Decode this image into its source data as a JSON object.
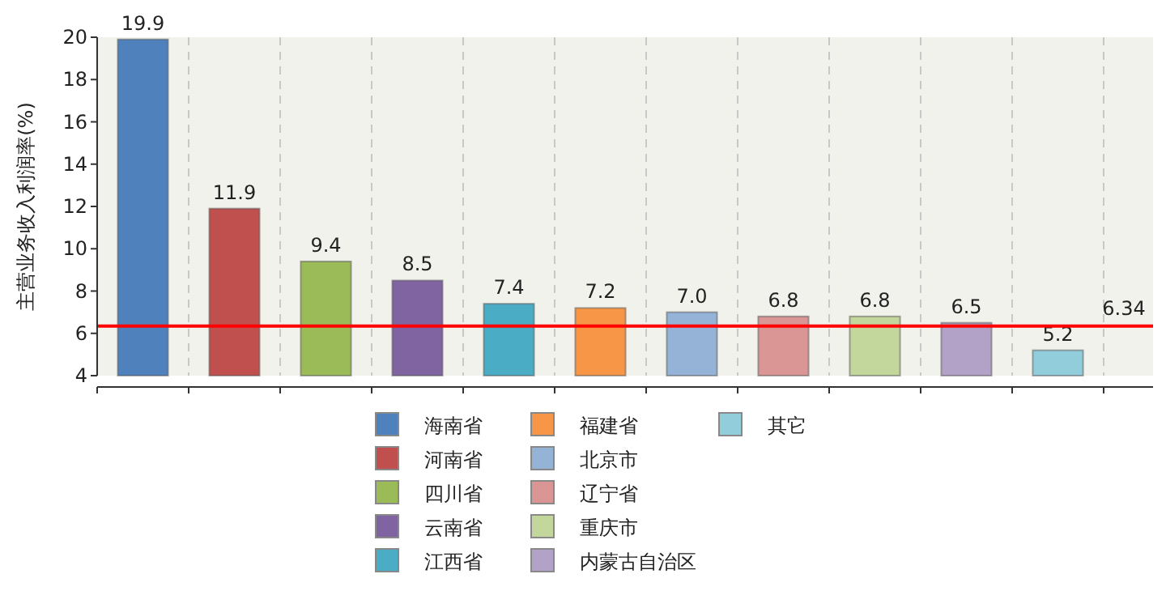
{
  "chart_data": {
    "type": "bar",
    "ylabel": "主营业务收入利润率(%)",
    "categories": [
      null,
      null,
      null,
      null,
      null,
      null,
      null,
      null,
      null,
      null,
      null
    ],
    "series": [
      {
        "name": "海南省",
        "color": "#4f81bd",
        "values": [
          19.9,
          null,
          null,
          null,
          null,
          null,
          null,
          null,
          null,
          null,
          null
        ],
        "value_labels": [
          "19.9",
          null,
          null,
          null,
          null,
          null,
          null,
          null,
          null,
          null,
          null
        ]
      },
      {
        "name": "河南省",
        "color": "#c0504d",
        "values": [
          null,
          11.9,
          null,
          null,
          null,
          null,
          null,
          null,
          null,
          null,
          null
        ],
        "value_labels": [
          null,
          "11.9",
          null,
          null,
          null,
          null,
          null,
          null,
          null,
          null,
          null
        ]
      },
      {
        "name": "四川省",
        "color": "#9bbb59",
        "values": [
          null,
          null,
          9.4,
          null,
          null,
          null,
          null,
          null,
          null,
          null,
          null
        ],
        "value_labels": [
          null,
          null,
          "9.4",
          null,
          null,
          null,
          null,
          null,
          null,
          null,
          null
        ]
      },
      {
        "name": "云南省",
        "color": "#8064a2",
        "values": [
          null,
          null,
          null,
          8.5,
          null,
          null,
          null,
          null,
          null,
          null,
          null
        ],
        "value_labels": [
          null,
          null,
          null,
          "8.5",
          null,
          null,
          null,
          null,
          null,
          null,
          null
        ]
      },
      {
        "name": "江西省",
        "color": "#4bacc6",
        "values": [
          null,
          null,
          null,
          null,
          7.4,
          null,
          null,
          null,
          null,
          null,
          null
        ],
        "value_labels": [
          null,
          null,
          null,
          null,
          "7.4",
          null,
          null,
          null,
          null,
          null,
          null
        ]
      },
      {
        "name": "福建省",
        "color": "#f79646",
        "values": [
          null,
          null,
          null,
          null,
          null,
          7.2,
          null,
          null,
          null,
          null,
          null
        ],
        "value_labels": [
          null,
          null,
          null,
          null,
          null,
          "7.2",
          null,
          null,
          null,
          null,
          null
        ]
      },
      {
        "name": "北京市",
        "color": "#95b3d7",
        "values": [
          null,
          null,
          null,
          null,
          null,
          null,
          7.0,
          null,
          null,
          null,
          null
        ],
        "value_labels": [
          null,
          null,
          null,
          null,
          null,
          null,
          "7.0",
          null,
          null,
          null,
          null
        ]
      },
      {
        "name": "辽宁省",
        "color": "#d99694",
        "values": [
          null,
          null,
          null,
          null,
          null,
          null,
          null,
          6.8,
          null,
          null,
          null
        ],
        "value_labels": [
          null,
          null,
          null,
          null,
          null,
          null,
          null,
          "6.8",
          null,
          null,
          null
        ]
      },
      {
        "name": "重庆市",
        "color": "#c3d69b",
        "values": [
          null,
          null,
          null,
          null,
          null,
          null,
          null,
          null,
          6.8,
          null,
          null
        ],
        "value_labels": [
          null,
          null,
          null,
          null,
          null,
          null,
          null,
          null,
          "6.8",
          null,
          null
        ]
      },
      {
        "name": "内蒙古自治区",
        "color": "#b2a2c7",
        "values": [
          null,
          null,
          null,
          null,
          null,
          null,
          null,
          null,
          null,
          6.5,
          null
        ],
        "value_labels": [
          null,
          null,
          null,
          null,
          null,
          null,
          null,
          null,
          null,
          "6.5",
          null
        ]
      },
      {
        "name": "其它",
        "color": "#92cddc",
        "values": [
          null,
          null,
          null,
          null,
          null,
          null,
          null,
          null,
          null,
          null,
          5.2
        ],
        "value_labels": [
          null,
          null,
          null,
          null,
          null,
          null,
          null,
          null,
          null,
          null,
          "5.2"
        ]
      }
    ],
    "ylim": [
      4,
      20
    ],
    "yticks": [
      4,
      6,
      8,
      10,
      12,
      14,
      16,
      18,
      20
    ],
    "ref_lines": [
      {
        "axis": "y",
        "value": 6.34,
        "label": "6.34",
        "color": "#ff0000"
      }
    ],
    "grid": "x",
    "legend": "bottom"
  }
}
